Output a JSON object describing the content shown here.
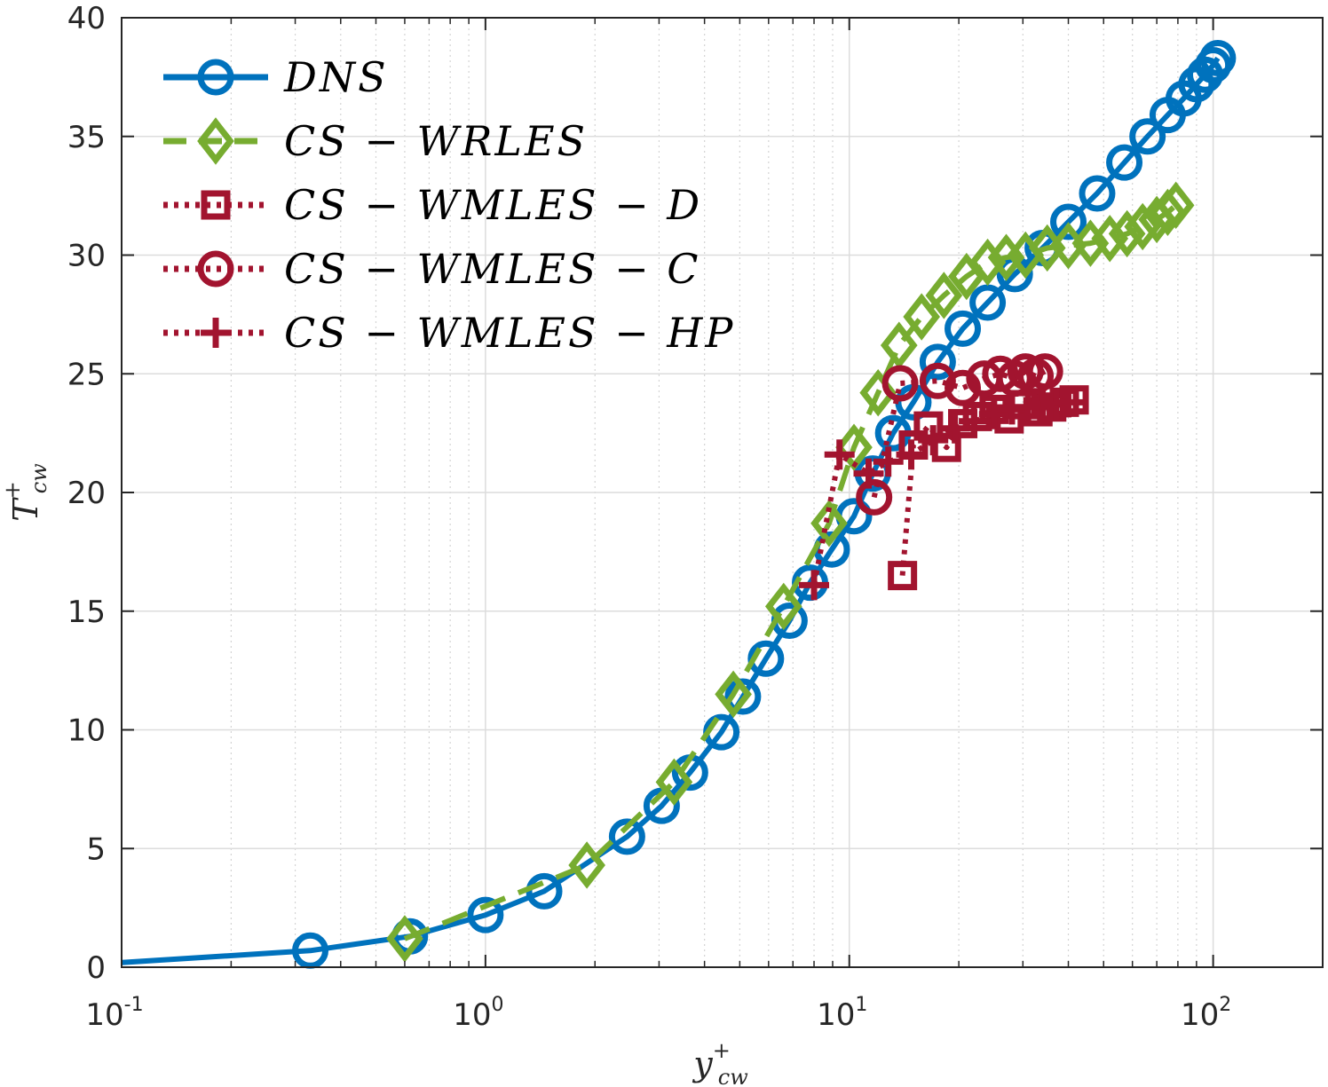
{
  "chart_data": {
    "type": "line",
    "xscale": "log",
    "xlim": [
      0.1,
      200
    ],
    "ylim": [
      0,
      40
    ],
    "grid": true,
    "legend_placement": "top-left",
    "xlabel": {
      "main": "y",
      "sup": "+",
      "sub": "cw"
    },
    "ylabel": {
      "main": "T",
      "sup": "+",
      "sub": "cw"
    },
    "xticks": [
      {
        "value": 0.1,
        "base": "10",
        "exp": "-1"
      },
      {
        "value": 1,
        "base": "10",
        "exp": "0"
      },
      {
        "value": 10,
        "base": "10",
        "exp": "1"
      },
      {
        "value": 100,
        "base": "10",
        "exp": "2"
      }
    ],
    "yticks": [
      "0",
      "5",
      "10",
      "15",
      "20",
      "25",
      "30",
      "35",
      "40"
    ],
    "series": [
      {
        "name": "DNS",
        "color": "#0072BD",
        "line": "solid",
        "marker": "circle",
        "x": [
          0.1,
          0.33,
          0.62,
          1.0,
          1.45,
          2.45,
          3.05,
          3.65,
          4.45,
          5.1,
          5.9,
          6.85,
          7.8,
          8.95,
          10.3,
          11.6,
          13.2,
          15.0,
          17.5,
          20.5,
          24,
          28.5,
          34,
          40,
          48,
          57,
          66,
          75,
          83,
          90,
          95,
          100,
          103
        ],
        "y": [
          0.2,
          0.7,
          1.3,
          2.2,
          3.2,
          5.5,
          6.8,
          8.2,
          9.9,
          11.4,
          13.0,
          14.6,
          16.2,
          17.6,
          19.0,
          20.8,
          22.5,
          23.8,
          25.5,
          26.9,
          28.0,
          29.2,
          30.3,
          31.4,
          32.6,
          33.9,
          35.0,
          35.9,
          36.6,
          37.2,
          37.6,
          38.0,
          38.3
        ]
      },
      {
        "name": "CS-WRLES",
        "color": "#77AC30",
        "line": "dashed",
        "marker": "diamond",
        "x": [
          0.6,
          1.9,
          3.3,
          4.8,
          6.6,
          8.8,
          10.3,
          12.0,
          13.7,
          15.8,
          18.2,
          21.0,
          24.0,
          27.0,
          30.5,
          35,
          40,
          46,
          52,
          58,
          64,
          70,
          75,
          79
        ],
        "y": [
          1.2,
          4.3,
          7.8,
          11.5,
          15.2,
          18.7,
          21.9,
          24.2,
          26.2,
          27.4,
          28.3,
          29.1,
          29.7,
          29.9,
          30.0,
          30.3,
          30.4,
          30.5,
          30.7,
          30.9,
          31.2,
          31.5,
          31.8,
          32.1
        ]
      },
      {
        "name": "CS-WMLES-D",
        "color": "#A2142F",
        "line": "dotted",
        "marker": "square",
        "x": [
          14.0,
          15.0,
          16.5,
          18.5,
          20.5,
          22.5,
          25.0,
          27.5,
          30.0,
          33.0,
          36.0,
          39.0,
          41.5
        ],
        "y": [
          16.5,
          22.0,
          22.8,
          21.9,
          22.9,
          23.2,
          23.5,
          23.1,
          23.7,
          23.4,
          23.6,
          23.8,
          23.9
        ]
      },
      {
        "name": "CS-WMLES-C",
        "color": "#A2142F",
        "line": "dotted",
        "marker": "circle",
        "x": [
          11.7,
          13.8,
          17.5,
          20.5,
          23.5,
          26.0,
          28.5,
          30.5,
          32.5,
          34.5
        ],
        "y": [
          19.8,
          24.6,
          24.7,
          24.4,
          24.8,
          25.0,
          24.8,
          25.1,
          24.9,
          25.1
        ]
      },
      {
        "name": "CS-WMLES-HP",
        "color": "#A2142F",
        "line": "dotted",
        "marker": "plus",
        "x": [
          8.0,
          9.4,
          11.3,
          12.8,
          14.8,
          17.0,
          19.5,
          22.0,
          25.0,
          28.0,
          31.0,
          34.0,
          37.0,
          40.0
        ],
        "y": [
          16.1,
          21.6,
          20.8,
          21.3,
          21.6,
          22.2,
          22.7,
          23.0,
          23.3,
          23.5,
          23.6,
          23.7,
          23.7,
          23.8
        ]
      }
    ]
  },
  "legend": [
    {
      "label": "DNS",
      "series": 0
    },
    {
      "label": "CS − WRLES",
      "series": 1
    },
    {
      "label": "CS − WMLES − D",
      "series": 2
    },
    {
      "label": "CS − WMLES − C",
      "series": 3
    },
    {
      "label": "CS − WMLES − HP",
      "series": 4
    }
  ]
}
